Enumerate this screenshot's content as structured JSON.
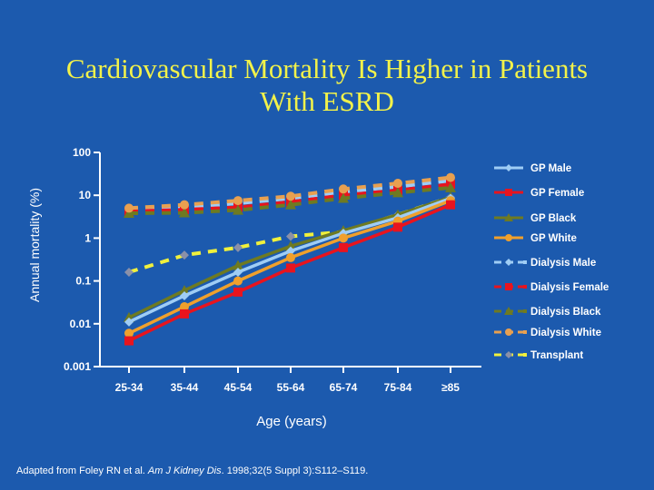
{
  "chart_data": {
    "type": "line",
    "title": "Cardiovascular Mortality Is Higher in Patients With ESRD",
    "title_lines": [
      "Cardiovascular Mortality Is Higher in Patients",
      "With ESRD"
    ],
    "xlabel": "Age (years)",
    "ylabel": "Annual mortality (%)",
    "yscale": "log",
    "ylim": [
      0.001,
      100
    ],
    "yticks": [
      100,
      10,
      1,
      0.1,
      0.01,
      0.001
    ],
    "ytick_labels": [
      "100",
      "10",
      "1",
      "0.1",
      "0.01",
      "0.001"
    ],
    "categories": [
      "25-34",
      "35-44",
      "45-54",
      "55-64",
      "65-74",
      "75-84",
      "≥85"
    ],
    "legend_position": "right",
    "grid": false,
    "series": [
      {
        "name": "GP Male",
        "color": "#9fcdf5",
        "dashed": false,
        "marker": "diamond",
        "values": [
          0.011,
          0.045,
          0.16,
          0.5,
          1.3,
          3.0,
          8.5
        ]
      },
      {
        "name": "GP Female",
        "color": "#e8141e",
        "dashed": false,
        "marker": "square",
        "values": [
          0.004,
          0.017,
          0.055,
          0.2,
          0.6,
          1.8,
          6.0
        ]
      },
      {
        "name": "GP Black",
        "color": "#6e7a22",
        "dashed": false,
        "marker": "triangle",
        "values": [
          0.014,
          0.06,
          0.23,
          0.65,
          1.5,
          3.5,
          9.0
        ]
      },
      {
        "name": "GP White",
        "color": "#f0a02c",
        "dashed": false,
        "marker": "circle",
        "values": [
          0.006,
          0.025,
          0.1,
          0.35,
          1.0,
          2.5,
          7.5
        ]
      },
      {
        "name": "Dialysis Male",
        "color": "#9fcdf5",
        "dashed": true,
        "marker": "diamond",
        "values": [
          4.8,
          5.3,
          6.5,
          8.5,
          12.0,
          16.0,
          22.0
        ]
      },
      {
        "name": "Dialysis Female",
        "color": "#e8141e",
        "dashed": true,
        "marker": "square",
        "values": [
          4.2,
          4.6,
          5.2,
          7.0,
          10.0,
          13.0,
          18.0
        ]
      },
      {
        "name": "Dialysis Black",
        "color": "#6e7a22",
        "dashed": true,
        "marker": "triangle",
        "values": [
          3.8,
          3.9,
          4.5,
          6.0,
          8.5,
          11.5,
          15.0
        ]
      },
      {
        "name": "Dialysis White",
        "color": "#e8a050",
        "dashed": true,
        "marker": "circle",
        "values": [
          5.0,
          6.0,
          7.5,
          9.5,
          14.0,
          19.0,
          26.0
        ]
      },
      {
        "name": "Transplant",
        "color": "#f0f03c",
        "marker_color": "#8a90a8",
        "dashed": true,
        "marker": "diamond",
        "values": [
          0.16,
          0.4,
          0.6,
          1.1,
          1.4,
          3.5,
          9.0
        ]
      }
    ]
  },
  "source": {
    "prefix": "Adapted from Foley RN et al. ",
    "journal": "Am J Kidney Dis",
    "suffix": ". 1998;32(5 Suppl 3):S112–S119."
  }
}
